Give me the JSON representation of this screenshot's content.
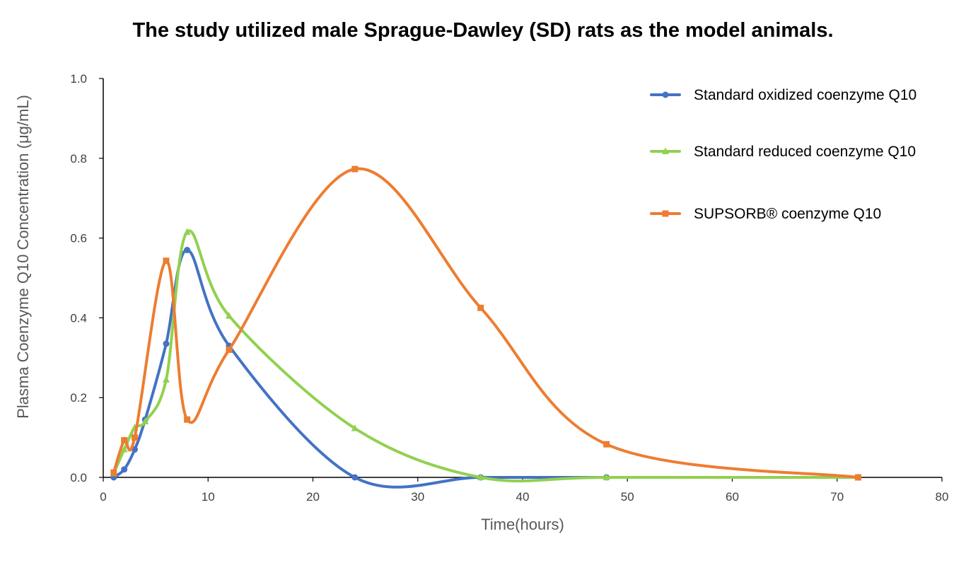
{
  "chart_data": {
    "type": "line",
    "title": "The study utilized male Sprague-Dawley (SD) rats as the model animals.",
    "xlabel": "Time(hours)",
    "ylabel": "Plasma Coenzyme Q10 Concentration (μg/mL)",
    "xlim": [
      0,
      80
    ],
    "ylim": [
      0,
      1.0
    ],
    "x_ticks": [
      0,
      10,
      20,
      30,
      40,
      50,
      60,
      70,
      80
    ],
    "x_tick_labels": [
      "0",
      "10",
      "20",
      "30",
      "40",
      "50",
      "60",
      "70",
      "80"
    ],
    "y_ticks": [
      0,
      0.2,
      0.4,
      0.6,
      0.8,
      1.0
    ],
    "y_tick_labels": [
      "0.0",
      "0.2",
      "0.4",
      "0.6",
      "0.8",
      "1.0"
    ],
    "grid": false,
    "legend_position": "top-right",
    "smooth": true,
    "series": [
      {
        "name": "Standard oxidized coenzyme Q10",
        "color": "#4472C4",
        "marker": "circle",
        "x": [
          1,
          2,
          3,
          4,
          6,
          8,
          12,
          24,
          36,
          48,
          72
        ],
        "y": [
          0.0,
          0.02,
          0.07,
          0.145,
          0.335,
          0.57,
          0.33,
          0.0,
          0.0,
          0.0,
          0.0
        ]
      },
      {
        "name": "Standard reduced coenzyme Q10",
        "color": "#92D050",
        "marker": "triangle",
        "x": [
          1,
          2,
          3,
          4,
          6,
          8,
          12,
          24,
          36,
          48,
          72
        ],
        "y": [
          0.01,
          0.07,
          0.125,
          0.14,
          0.245,
          0.615,
          0.405,
          0.123,
          0.0,
          0.0,
          0.0
        ]
      },
      {
        "name": "SUPSORB® coenzyme Q10",
        "color": "#ED7D31",
        "marker": "square",
        "x": [
          1,
          2,
          3,
          6,
          8,
          12,
          24,
          36,
          48,
          72
        ],
        "y": [
          0.012,
          0.093,
          0.1,
          0.543,
          0.145,
          0.32,
          0.773,
          0.425,
          0.083,
          0.0
        ]
      }
    ]
  }
}
